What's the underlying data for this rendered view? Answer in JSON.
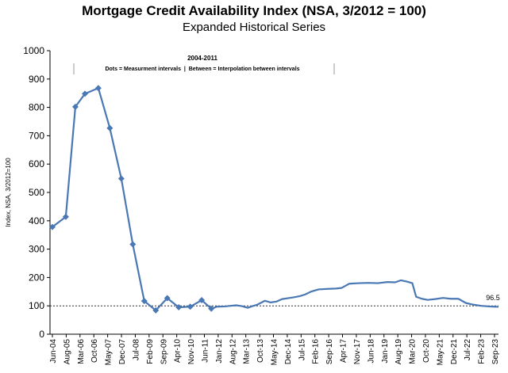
{
  "chart_data": {
    "type": "line",
    "title": "Mortgage Credit Availability Index (NSA, 3/2012 = 100)",
    "subtitle": "Expanded Historical Series",
    "ylabel": "Index, NSA, 3/2012=100",
    "xlabel": "",
    "ylim": [
      0,
      1000
    ],
    "yticks": [
      "0",
      "100",
      "200",
      "300",
      "400",
      "500",
      "600",
      "700",
      "800",
      "900",
      "1000"
    ],
    "x_ticks": [
      "Jun-04",
      "Aug-05",
      "Mar-06",
      "Oct-06",
      "May-07",
      "Dec-07",
      "Jul-08",
      "Feb-09",
      "Sep-09",
      "Apr-10",
      "Nov-10",
      "Jun-11",
      "Jan-12",
      "Aug-12",
      "Mar-13",
      "Oct-13",
      "May-14",
      "Dec-14",
      "Jul-15",
      "Feb-16",
      "Sep-16",
      "Apr-17",
      "Nov-17",
      "Jun-18",
      "Jan-19",
      "Aug-19",
      "Mar-20",
      "Oct-20",
      "May-21",
      "Dec-21",
      "Jul-22",
      "Feb-23",
      "Sep-23"
    ],
    "annotation": {
      "title": "2004-2011",
      "text": "Dots = Measurment intervals  |  Between = Interpolation between intervals"
    },
    "reference_line": 100,
    "end_label": "96.5",
    "series": [
      {
        "color": "#4a78b5",
        "markers": [
          {
            "x": "2004-06",
            "y": 378
          },
          {
            "x": "2005-01",
            "y": 414
          },
          {
            "x": "2005-06",
            "y": 802
          },
          {
            "x": "2005-11",
            "y": 848
          },
          {
            "x": "2006-06",
            "y": 868
          },
          {
            "x": "2006-12",
            "y": 727
          },
          {
            "x": "2007-06",
            "y": 549
          },
          {
            "x": "2007-12",
            "y": 317
          },
          {
            "x": "2008-06",
            "y": 117
          },
          {
            "x": "2008-12",
            "y": 84
          },
          {
            "x": "2009-06",
            "y": 127
          },
          {
            "x": "2009-12",
            "y": 95
          },
          {
            "x": "2010-06",
            "y": 97
          },
          {
            "x": "2010-12",
            "y": 120
          },
          {
            "x": "2011-05",
            "y": 90
          }
        ],
        "points": [
          {
            "x": "2004-06",
            "y": 378
          },
          {
            "x": "2005-01",
            "y": 414
          },
          {
            "x": "2005-06",
            "y": 802
          },
          {
            "x": "2005-11",
            "y": 848
          },
          {
            "x": "2006-06",
            "y": 868
          },
          {
            "x": "2006-12",
            "y": 727
          },
          {
            "x": "2007-06",
            "y": 549
          },
          {
            "x": "2007-12",
            "y": 317
          },
          {
            "x": "2008-06",
            "y": 117
          },
          {
            "x": "2008-12",
            "y": 84
          },
          {
            "x": "2009-06",
            "y": 127
          },
          {
            "x": "2009-12",
            "y": 95
          },
          {
            "x": "2010-06",
            "y": 97
          },
          {
            "x": "2010-12",
            "y": 120
          },
          {
            "x": "2011-05",
            "y": 90
          },
          {
            "x": "2011-08",
            "y": 97
          },
          {
            "x": "2011-12",
            "y": 98
          },
          {
            "x": "2012-03",
            "y": 100
          },
          {
            "x": "2012-06",
            "y": 102
          },
          {
            "x": "2012-09",
            "y": 99
          },
          {
            "x": "2012-12",
            "y": 93
          },
          {
            "x": "2013-02",
            "y": 98
          },
          {
            "x": "2013-05",
            "y": 104
          },
          {
            "x": "2013-09",
            "y": 118
          },
          {
            "x": "2013-12",
            "y": 112
          },
          {
            "x": "2014-03",
            "y": 115
          },
          {
            "x": "2014-06",
            "y": 124
          },
          {
            "x": "2014-09",
            "y": 127
          },
          {
            "x": "2014-12",
            "y": 130
          },
          {
            "x": "2015-03",
            "y": 134
          },
          {
            "x": "2015-06",
            "y": 140
          },
          {
            "x": "2015-09",
            "y": 150
          },
          {
            "x": "2016-01",
            "y": 158
          },
          {
            "x": "2016-06",
            "y": 160
          },
          {
            "x": "2016-10",
            "y": 161
          },
          {
            "x": "2017-01",
            "y": 163
          },
          {
            "x": "2017-05",
            "y": 178
          },
          {
            "x": "2017-10",
            "y": 180
          },
          {
            "x": "2018-03",
            "y": 181
          },
          {
            "x": "2018-08",
            "y": 180
          },
          {
            "x": "2019-01",
            "y": 184
          },
          {
            "x": "2019-05",
            "y": 183
          },
          {
            "x": "2019-08",
            "y": 190
          },
          {
            "x": "2019-11",
            "y": 186
          },
          {
            "x": "2020-02",
            "y": 180
          },
          {
            "x": "2020-04",
            "y": 132
          },
          {
            "x": "2020-07",
            "y": 125
          },
          {
            "x": "2020-10",
            "y": 121
          },
          {
            "x": "2021-02",
            "y": 124
          },
          {
            "x": "2021-06",
            "y": 128
          },
          {
            "x": "2021-10",
            "y": 125
          },
          {
            "x": "2022-02",
            "y": 125
          },
          {
            "x": "2022-06",
            "y": 110
          },
          {
            "x": "2022-10",
            "y": 104
          },
          {
            "x": "2023-02",
            "y": 100
          },
          {
            "x": "2023-06",
            "y": 98
          },
          {
            "x": "2023-09",
            "y": 97
          },
          {
            "x": "2023-11",
            "y": 96.5
          }
        ]
      }
    ]
  }
}
